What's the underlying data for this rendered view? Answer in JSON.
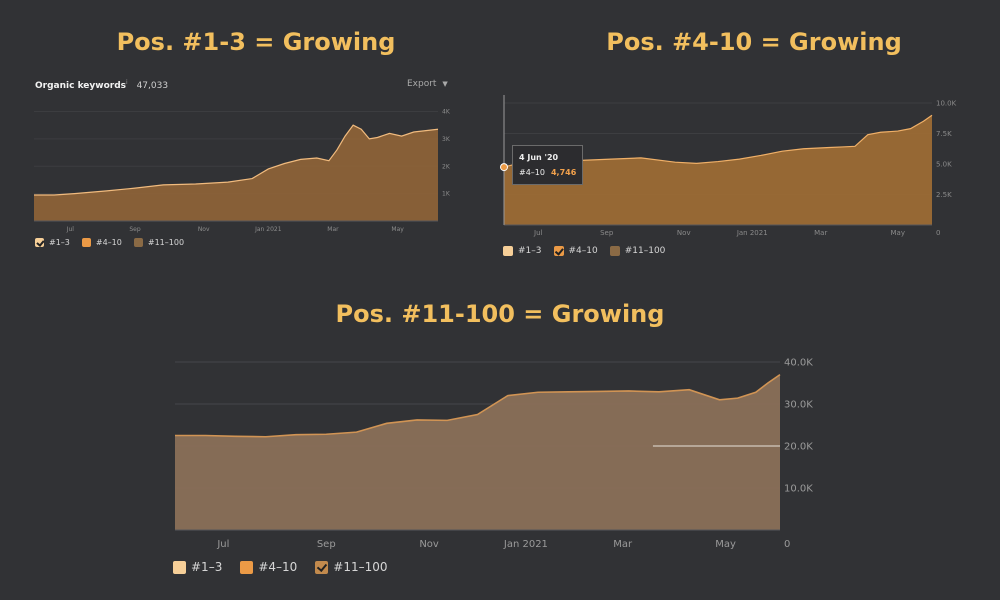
{
  "titles": [
    "Pos. #1-3 = Growing",
    "Pos. #4-10 = Growing",
    "Pos. #11-100 = Growing"
  ],
  "header": {
    "label": "Organic keywords",
    "info": "i",
    "value": "47,033",
    "export": "Export"
  },
  "tooltip": {
    "date": "4 Jun '20",
    "series": "#4–10",
    "value": "4,746"
  },
  "legend": [
    "#1–3",
    "#4–10",
    "#11–100"
  ],
  "colors": {
    "bg": "#313235",
    "title": "#f2bf5e",
    "c1": "#f6cf98",
    "c2": "#eb9a46",
    "c3": "#8a6a45"
  },
  "chart_data": [
    {
      "type": "area",
      "title": "Organic keywords",
      "series_name": "#1–3",
      "x_ticks": [
        "Jul",
        "Sep",
        "Nov",
        "Jan 2021",
        "Mar",
        "May"
      ],
      "y_ticks": [
        "1K",
        "2K",
        "3K",
        "4K"
      ],
      "ylim": [
        0,
        4200
      ],
      "x": [
        0,
        0.05,
        0.1,
        0.18,
        0.25,
        0.32,
        0.4,
        0.48,
        0.54,
        0.58,
        0.62,
        0.66,
        0.7,
        0.73,
        0.75,
        0.77,
        0.79,
        0.81,
        0.83,
        0.85,
        0.88,
        0.91,
        0.94,
        0.97,
        1.0
      ],
      "values": [
        950,
        950,
        1000,
        1100,
        1200,
        1320,
        1350,
        1420,
        1550,
        1900,
        2100,
        2250,
        2300,
        2200,
        2600,
        3100,
        3500,
        3350,
        3000,
        3050,
        3200,
        3100,
        3250,
        3300,
        3350
      ],
      "checked": 0
    },
    {
      "type": "area",
      "series_name": "#4–10",
      "x_ticks": [
        "Jul",
        "Sep",
        "Nov",
        "Jan 2021",
        "Mar",
        "May"
      ],
      "y_ticks": [
        "0",
        "2.5K",
        "5.0K",
        "7.5K",
        "10.0K"
      ],
      "ylim": [
        0,
        10000
      ],
      "x": [
        0,
        0.05,
        0.1,
        0.18,
        0.25,
        0.32,
        0.4,
        0.45,
        0.5,
        0.55,
        0.6,
        0.65,
        0.7,
        0.73,
        0.76,
        0.79,
        0.82,
        0.85,
        0.88,
        0.92,
        0.95,
        0.98,
        1.0
      ],
      "values": [
        4746,
        5200,
        5400,
        5300,
        5400,
        5500,
        5150,
        5050,
        5200,
        5400,
        5700,
        6050,
        6250,
        6300,
        6350,
        6400,
        6450,
        7400,
        7600,
        7700,
        7900,
        8500,
        9000
      ],
      "checked": 1,
      "tooltip_x": 0
    },
    {
      "type": "area",
      "series_name": "#11–100",
      "x_ticks": [
        "Jul",
        "Sep",
        "Nov",
        "Jan 2021",
        "Mar",
        "May"
      ],
      "y_ticks": [
        "0",
        "10.0K",
        "20.0K",
        "30.0K",
        "40.0K"
      ],
      "ylim": [
        0,
        40000
      ],
      "x": [
        0,
        0.05,
        0.1,
        0.15,
        0.2,
        0.25,
        0.3,
        0.35,
        0.4,
        0.45,
        0.5,
        0.55,
        0.6,
        0.65,
        0.7,
        0.75,
        0.8,
        0.85,
        0.9,
        0.93,
        0.96,
        0.98,
        1.0
      ],
      "values": [
        22500,
        22500,
        22300,
        22200,
        22700,
        22800,
        23300,
        25400,
        26200,
        26100,
        27500,
        32000,
        32800,
        32900,
        33000,
        33100,
        32900,
        33400,
        31000,
        31400,
        32800,
        35000,
        37000
      ],
      "checked": 2
    }
  ]
}
